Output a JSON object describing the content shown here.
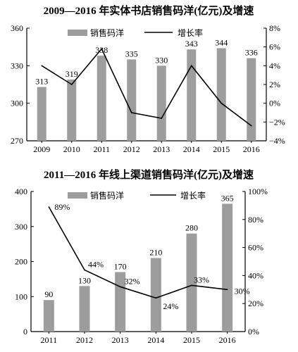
{
  "chart_data": [
    {
      "type": "bar",
      "title": "2009—2016 年实体书店销售码洋(亿元)及增速",
      "categories": [
        "2009",
        "2010",
        "2011",
        "2012",
        "2013",
        "2014",
        "2015",
        "2016"
      ],
      "series": [
        {
          "name": "销售码洋",
          "type": "bar",
          "axis": "left",
          "values": [
            313,
            319,
            338,
            335,
            330,
            343,
            344,
            336
          ],
          "labels": [
            "313",
            "319",
            "338",
            "335",
            "330",
            "343",
            "344",
            "336"
          ]
        },
        {
          "name": "增长率",
          "type": "line",
          "axis": "right",
          "values": [
            4.0,
            2.0,
            5.8,
            -1.0,
            -1.6,
            4.0,
            0.0,
            -2.4
          ]
        }
      ],
      "left_axis": {
        "ylim": [
          270,
          360
        ],
        "ticks": [
          "270",
          "300",
          "330",
          "360"
        ]
      },
      "right_axis": {
        "ylim": [
          -4,
          8
        ],
        "ticks": [
          "−4%",
          "−2%",
          "0%",
          "2%",
          "4%",
          "6%",
          "8%"
        ]
      },
      "legend_position": "top",
      "grid": false,
      "colors": {
        "bar": "#9d9d9d",
        "line": "#000000"
      }
    },
    {
      "type": "bar",
      "title": "2011—2016 年线上渠道销售码洋(亿元)及增速",
      "categories": [
        "2011",
        "2012",
        "2013",
        "2014",
        "2015",
        "2016"
      ],
      "series": [
        {
          "name": "销售码洋",
          "type": "bar",
          "axis": "left",
          "values": [
            90,
            130,
            170,
            210,
            280,
            365
          ],
          "labels": [
            "90",
            "130",
            "170",
            "210",
            "280",
            "365"
          ]
        },
        {
          "name": "增长率",
          "type": "line",
          "axis": "right",
          "values": [
            89,
            44,
            32,
            24,
            33,
            30
          ],
          "labels": [
            "89%",
            "44%",
            "32%",
            "24%",
            "33%",
            "30%"
          ]
        }
      ],
      "left_axis": {
        "ylim": [
          0,
          400
        ],
        "ticks": [
          "0",
          "100",
          "200",
          "300",
          "400"
        ]
      },
      "right_axis": {
        "ylim": [
          0,
          100
        ],
        "ticks": [
          "0%",
          "20%",
          "40%",
          "60%",
          "80%",
          "100%"
        ]
      },
      "legend_position": "top",
      "grid": false,
      "colors": {
        "bar": "#9d9d9d",
        "line": "#000000"
      }
    }
  ]
}
